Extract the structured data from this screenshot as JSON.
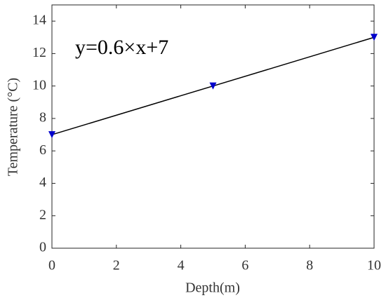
{
  "chart_data": {
    "type": "line",
    "xlabel": "Depth(m)",
    "ylabel": "Temperature (°C)",
    "annotation": "y=0.6×x+7",
    "x": [
      0,
      5,
      10
    ],
    "values": [
      7,
      10,
      13
    ],
    "line_color": "#000000",
    "marker_color": "#0000cc",
    "marker": "v",
    "xlim": [
      0,
      10
    ],
    "xticks": [
      0,
      2,
      4,
      6,
      8,
      10
    ],
    "ylim": [
      0,
      15
    ],
    "yticks": [
      0,
      2,
      4,
      6,
      8,
      10,
      12,
      14
    ],
    "grid": false
  }
}
